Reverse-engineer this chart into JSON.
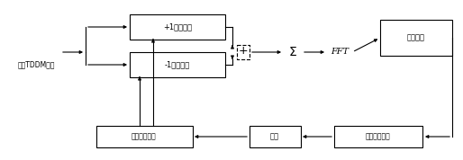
{
  "bg": "#ffffff",
  "ec": "#000000",
  "fc": "#ffffff",
  "tc": "#000000",
  "input_label": "基带TDDM信号",
  "ch1_label": "+1扩频模块",
  "ch2_label": "-1扩频模块",
  "regen_label": "伪码发生模块",
  "adjust_label": "调整",
  "ctrl_label": "数控振荡单元",
  "thresh_label": "门限判决",
  "sum_label": "Σ",
  "fft_label": "FFT",
  "plus_label": "+",
  "figw": 5.14,
  "figh": 1.78,
  "dpi": 100
}
